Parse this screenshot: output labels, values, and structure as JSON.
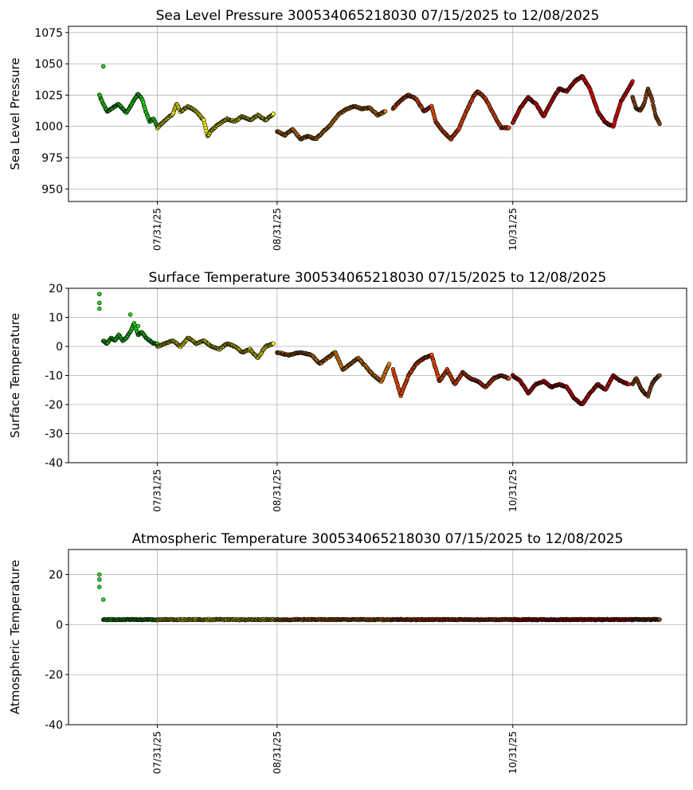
{
  "chart_data": [
    {
      "type": "scatter",
      "title": "Sea Level Pressure 300534065218030  07/15/2025 to 12/08/2025",
      "xlabel": "",
      "ylabel": "Sea Level Pressure",
      "ylim": [
        940,
        1080
      ],
      "yticks": [
        950,
        975,
        1000,
        1025,
        1050,
        1075
      ],
      "xlim": [
        "2025-07-08",
        "2025-12-15"
      ],
      "xticks": [
        {
          "date": "2025-07-31",
          "label": "07/31/25"
        },
        {
          "date": "2025-08-31",
          "label": "08/31/25"
        },
        {
          "date": "2025-10-31",
          "label": "10/31/25"
        }
      ],
      "grid": true,
      "colors": {
        "green": "#22e01a",
        "yellow": "#ffff1a",
        "orange": "#f58a0a",
        "red_orange": "#f54a0a",
        "red": "#e80c0c",
        "brown": "#8b4513"
      },
      "segments": [
        {
          "color": "green",
          "points": [
            [
              "2025-07-16",
              1025
            ],
            [
              "2025-07-17",
              1018
            ],
            [
              "2025-07-18",
              1012
            ],
            [
              "2025-07-19",
              1014
            ],
            [
              "2025-07-20",
              1016
            ],
            [
              "2025-07-21",
              1018
            ],
            [
              "2025-07-22",
              1014
            ],
            [
              "2025-07-23",
              1011
            ],
            [
              "2025-07-24",
              1016
            ],
            [
              "2025-07-25",
              1021
            ],
            [
              "2025-07-26",
              1026
            ],
            [
              "2025-07-27",
              1022
            ],
            [
              "2025-07-28",
              1012
            ],
            [
              "2025-07-29",
              1004
            ],
            [
              "2025-07-30",
              1006
            ],
            [
              "2025-07-31",
              1000
            ]
          ]
        },
        {
          "color": "yellow",
          "points": [
            [
              "2025-07-31",
              999
            ],
            [
              "2025-08-02",
              1005
            ],
            [
              "2025-08-04",
              1010
            ],
            [
              "2025-08-05",
              1018
            ],
            [
              "2025-08-06",
              1012
            ],
            [
              "2025-08-08",
              1016
            ],
            [
              "2025-08-10",
              1012
            ],
            [
              "2025-08-12",
              1005
            ],
            [
              "2025-08-13",
              992
            ],
            [
              "2025-08-14",
              997
            ],
            [
              "2025-08-16",
              1002
            ],
            [
              "2025-08-18",
              1006
            ],
            [
              "2025-08-20",
              1004
            ],
            [
              "2025-08-22",
              1008
            ],
            [
              "2025-08-24",
              1005
            ],
            [
              "2025-08-26",
              1009
            ],
            [
              "2025-08-28",
              1005
            ],
            [
              "2025-08-30",
              1010
            ]
          ]
        },
        {
          "color": "orange",
          "points": [
            [
              "2025-08-31",
              996
            ],
            [
              "2025-09-02",
              993
            ],
            [
              "2025-09-04",
              998
            ],
            [
              "2025-09-06",
              990
            ],
            [
              "2025-09-08",
              992
            ],
            [
              "2025-09-10",
              990
            ],
            [
              "2025-09-12",
              996
            ],
            [
              "2025-09-14",
              1002
            ],
            [
              "2025-09-16",
              1010
            ],
            [
              "2025-09-18",
              1014
            ],
            [
              "2025-09-20",
              1016
            ],
            [
              "2025-09-22",
              1014
            ],
            [
              "2025-09-24",
              1015
            ],
            [
              "2025-09-26",
              1009
            ],
            [
              "2025-09-28",
              1012
            ]
          ]
        },
        {
          "color": "red_orange",
          "points": [
            [
              "2025-09-30",
              1014
            ],
            [
              "2025-10-02",
              1021
            ],
            [
              "2025-10-04",
              1025
            ],
            [
              "2025-10-06",
              1022
            ],
            [
              "2025-10-08",
              1012
            ],
            [
              "2025-10-10",
              1016
            ],
            [
              "2025-10-11",
              1004
            ],
            [
              "2025-10-13",
              996
            ],
            [
              "2025-10-15",
              990
            ],
            [
              "2025-10-17",
              998
            ],
            [
              "2025-10-19",
              1012
            ],
            [
              "2025-10-21",
              1025
            ],
            [
              "2025-10-22",
              1028
            ],
            [
              "2025-10-24",
              1022
            ],
            [
              "2025-10-26",
              1010
            ],
            [
              "2025-10-28",
              999
            ],
            [
              "2025-10-30",
              999
            ]
          ]
        },
        {
          "color": "red",
          "points": [
            [
              "2025-10-31",
              1003
            ],
            [
              "2025-11-02",
              1015
            ],
            [
              "2025-11-04",
              1023
            ],
            [
              "2025-11-06",
              1018
            ],
            [
              "2025-11-08",
              1008
            ],
            [
              "2025-11-10",
              1020
            ],
            [
              "2025-11-12",
              1030
            ],
            [
              "2025-11-14",
              1028
            ],
            [
              "2025-11-16",
              1036
            ],
            [
              "2025-11-18",
              1040
            ],
            [
              "2025-11-20",
              1030
            ],
            [
              "2025-11-22",
              1012
            ],
            [
              "2025-11-24",
              1003
            ],
            [
              "2025-11-26",
              1000
            ],
            [
              "2025-11-28",
              1020
            ],
            [
              "2025-11-30",
              1030
            ],
            [
              "2025-12-01",
              1036
            ]
          ]
        },
        {
          "color": "brown",
          "points": [
            [
              "2025-12-01",
              1023
            ],
            [
              "2025-12-02",
              1014
            ],
            [
              "2025-12-03",
              1013
            ],
            [
              "2025-12-04",
              1018
            ],
            [
              "2025-12-05",
              1030
            ],
            [
              "2025-12-06",
              1022
            ],
            [
              "2025-12-07",
              1008
            ],
            [
              "2025-12-08",
              1002
            ]
          ]
        }
      ],
      "outliers": [
        {
          "color": "green",
          "x": "2025-07-17",
          "y": 1048
        }
      ]
    },
    {
      "type": "scatter",
      "title": "Surface Temperature 300534065218030  07/15/2025 to 12/08/2025",
      "xlabel": "",
      "ylabel": "Surface Temperature",
      "ylim": [
        -40,
        20
      ],
      "yticks": [
        -40,
        -30,
        -20,
        -10,
        0,
        10,
        20
      ],
      "xlim": [
        "2025-07-08",
        "2025-12-15"
      ],
      "xticks": [
        {
          "date": "2025-07-31",
          "label": "07/31/25"
        },
        {
          "date": "2025-08-31",
          "label": "08/31/25"
        },
        {
          "date": "2025-10-31",
          "label": "10/31/25"
        }
      ],
      "grid": true,
      "colors": {
        "green": "#22e01a",
        "yellow": "#ffff1a",
        "orange": "#f58a0a",
        "red_orange": "#f54a0a",
        "red": "#e80c0c",
        "brown": "#8b4513"
      },
      "segments": [
        {
          "color": "green",
          "points": [
            [
              "2025-07-17",
              2
            ],
            [
              "2025-07-18",
              1
            ],
            [
              "2025-07-19",
              3
            ],
            [
              "2025-07-20",
              2
            ],
            [
              "2025-07-21",
              4
            ],
            [
              "2025-07-22",
              2
            ],
            [
              "2025-07-23",
              3
            ],
            [
              "2025-07-24",
              5
            ],
            [
              "2025-07-25",
              8
            ],
            [
              "2025-07-26",
              4
            ],
            [
              "2025-07-27",
              5
            ],
            [
              "2025-07-28",
              3
            ],
            [
              "2025-07-29",
              2
            ],
            [
              "2025-07-30",
              1
            ],
            [
              "2025-07-31",
              1
            ]
          ]
        },
        {
          "color": "yellow",
          "points": [
            [
              "2025-07-31",
              0
            ],
            [
              "2025-08-02",
              1
            ],
            [
              "2025-08-04",
              2
            ],
            [
              "2025-08-06",
              0
            ],
            [
              "2025-08-08",
              3
            ],
            [
              "2025-08-10",
              1
            ],
            [
              "2025-08-12",
              2
            ],
            [
              "2025-08-14",
              0
            ],
            [
              "2025-08-16",
              -1
            ],
            [
              "2025-08-18",
              1
            ],
            [
              "2025-08-20",
              0
            ],
            [
              "2025-08-22",
              -2
            ],
            [
              "2025-08-24",
              -1
            ],
            [
              "2025-08-26",
              -4
            ],
            [
              "2025-08-28",
              0
            ],
            [
              "2025-08-30",
              1
            ]
          ]
        },
        {
          "color": "orange",
          "points": [
            [
              "2025-08-31",
              -2
            ],
            [
              "2025-09-03",
              -3
            ],
            [
              "2025-09-06",
              -2
            ],
            [
              "2025-09-09",
              -3
            ],
            [
              "2025-09-11",
              -6
            ],
            [
              "2025-09-13",
              -4
            ],
            [
              "2025-09-15",
              -2
            ],
            [
              "2025-09-17",
              -8
            ],
            [
              "2025-09-19",
              -6
            ],
            [
              "2025-09-21",
              -4
            ],
            [
              "2025-09-23",
              -7
            ],
            [
              "2025-09-25",
              -10
            ],
            [
              "2025-09-27",
              -12
            ],
            [
              "2025-09-29",
              -6
            ]
          ]
        },
        {
          "color": "red_orange",
          "points": [
            [
              "2025-09-30",
              -8
            ],
            [
              "2025-10-02",
              -17
            ],
            [
              "2025-10-04",
              -10
            ],
            [
              "2025-10-06",
              -6
            ],
            [
              "2025-10-08",
              -4
            ],
            [
              "2025-10-10",
              -3
            ],
            [
              "2025-10-12",
              -12
            ],
            [
              "2025-10-14",
              -8
            ],
            [
              "2025-10-16",
              -13
            ],
            [
              "2025-10-18",
              -9
            ],
            [
              "2025-10-20",
              -11
            ],
            [
              "2025-10-22",
              -12
            ],
            [
              "2025-10-24",
              -14
            ],
            [
              "2025-10-26",
              -11
            ],
            [
              "2025-10-28",
              -10
            ],
            [
              "2025-10-30",
              -11
            ]
          ]
        },
        {
          "color": "red",
          "points": [
            [
              "2025-10-31",
              -10
            ],
            [
              "2025-11-02",
              -12
            ],
            [
              "2025-11-04",
              -16
            ],
            [
              "2025-11-06",
              -13
            ],
            [
              "2025-11-08",
              -12
            ],
            [
              "2025-11-10",
              -14
            ],
            [
              "2025-11-12",
              -13
            ],
            [
              "2025-11-14",
              -14
            ],
            [
              "2025-11-16",
              -18
            ],
            [
              "2025-11-18",
              -20
            ],
            [
              "2025-11-20",
              -16
            ],
            [
              "2025-11-22",
              -13
            ],
            [
              "2025-11-24",
              -15
            ],
            [
              "2025-11-26",
              -10
            ],
            [
              "2025-11-28",
              -12
            ],
            [
              "2025-11-30",
              -13
            ]
          ]
        },
        {
          "color": "brown",
          "points": [
            [
              "2025-12-01",
              -13
            ],
            [
              "2025-12-02",
              -11
            ],
            [
              "2025-12-03",
              -14
            ],
            [
              "2025-12-04",
              -16
            ],
            [
              "2025-12-05",
              -17
            ],
            [
              "2025-12-06",
              -13
            ],
            [
              "2025-12-07",
              -11
            ],
            [
              "2025-12-08",
              -10
            ]
          ]
        }
      ],
      "outliers": [
        {
          "color": "green",
          "x": "2025-07-16",
          "y": 18
        },
        {
          "color": "green",
          "x": "2025-07-16",
          "y": 15
        },
        {
          "color": "green",
          "x": "2025-07-16",
          "y": 13
        },
        {
          "color": "green",
          "x": "2025-07-24",
          "y": 11
        },
        {
          "color": "green",
          "x": "2025-07-26",
          "y": 7
        }
      ]
    },
    {
      "type": "scatter",
      "title": "Atmospheric Temperature 300534065218030  07/15/2025 to 12/08/2025",
      "xlabel": "",
      "ylabel": "Atmospheric Temperature",
      "ylim": [
        -40,
        30
      ],
      "yticks": [
        -40,
        -20,
        0,
        20
      ],
      "xlim": [
        "2025-07-08",
        "2025-12-15"
      ],
      "xticks": [
        {
          "date": "2025-07-31",
          "label": "07/31/25"
        },
        {
          "date": "2025-08-31",
          "label": "08/31/25"
        },
        {
          "date": "2025-10-31",
          "label": "10/31/25"
        }
      ],
      "grid": true,
      "colors": {
        "green": "#22e01a",
        "yellow": "#ffff1a",
        "orange": "#f58a0a",
        "red_orange": "#f54a0a",
        "red": "#e80c0c",
        "brown": "#8b4513"
      },
      "segments": [
        {
          "color": "green",
          "points": [
            [
              "2025-07-17",
              2
            ],
            [
              "2025-07-31",
              2
            ]
          ]
        },
        {
          "color": "yellow",
          "points": [
            [
              "2025-07-31",
              2
            ],
            [
              "2025-08-31",
              2
            ]
          ]
        },
        {
          "color": "orange",
          "points": [
            [
              "2025-08-31",
              2
            ],
            [
              "2025-09-30",
              2
            ]
          ]
        },
        {
          "color": "red_orange",
          "points": [
            [
              "2025-09-30",
              2
            ],
            [
              "2025-10-31",
              2
            ]
          ]
        },
        {
          "color": "red",
          "points": [
            [
              "2025-10-31",
              2
            ],
            [
              "2025-12-01",
              2
            ]
          ]
        },
        {
          "color": "brown",
          "points": [
            [
              "2025-12-01",
              2
            ],
            [
              "2025-12-08",
              2
            ]
          ]
        }
      ],
      "outliers": [
        {
          "color": "green",
          "x": "2025-07-16",
          "y": 20
        },
        {
          "color": "green",
          "x": "2025-07-16",
          "y": 18
        },
        {
          "color": "green",
          "x": "2025-07-16",
          "y": 15
        },
        {
          "color": "green",
          "x": "2025-07-17",
          "y": 10
        }
      ]
    }
  ]
}
